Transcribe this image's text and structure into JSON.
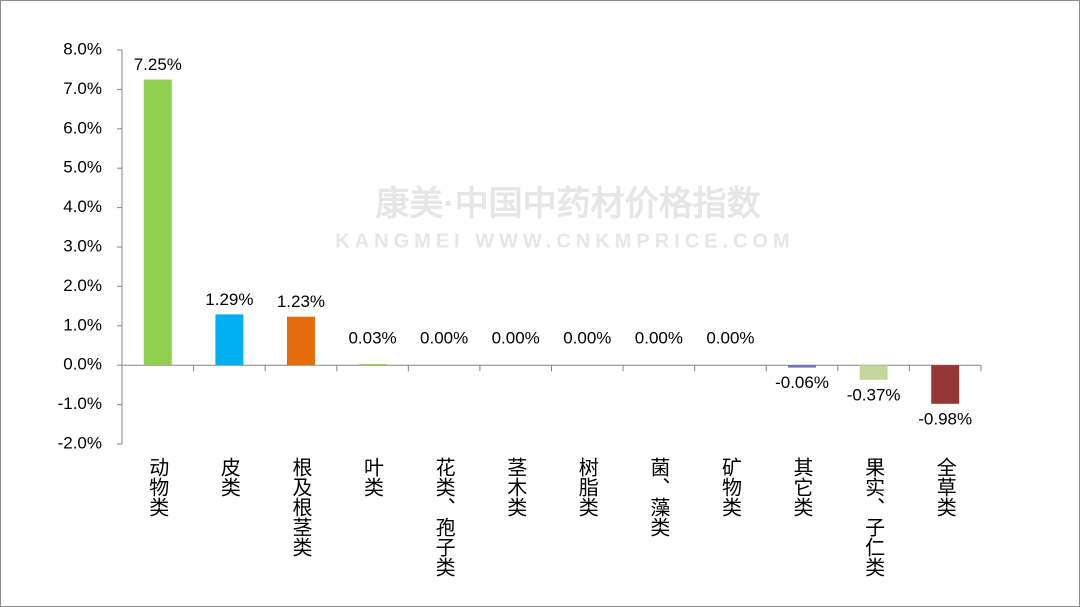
{
  "chart_data": {
    "type": "bar",
    "watermark": "康美·中国中药材价格指数",
    "watermark_subtitle": "KANGMEI WWW.CNKMPRICE.COM",
    "categories": [
      "动物类",
      "皮类",
      "根及根茎类",
      "叶类",
      "花类、孢子类",
      "茎木类",
      "树脂类",
      "菌、藻类",
      "矿物类",
      "其它类",
      "果实、子仁类",
      "全草类"
    ],
    "values": [
      7.25,
      1.29,
      1.23,
      0.03,
      0.0,
      0.0,
      0.0,
      0.0,
      0.0,
      -0.06,
      -0.37,
      -0.98
    ],
    "value_labels": [
      "7.25%",
      "1.29%",
      "1.23%",
      "0.03%",
      "0.00%",
      "0.00%",
      "0.00%",
      "0.00%",
      "0.00%",
      "-0.06%",
      "-0.37%",
      "-0.98%"
    ],
    "colors": [
      "#92d050",
      "#00b0f0",
      "#e46c0a",
      "#92d050",
      "#92d050",
      "#92d050",
      "#92d050",
      "#92d050",
      "#92d050",
      "#7070c0",
      "#c3d69b",
      "#953735"
    ],
    "ylim": [
      -2,
      8
    ],
    "yticks": [
      {
        "value": -2,
        "label": "-2.0%"
      },
      {
        "value": -1,
        "label": "-1.0%"
      },
      {
        "value": 0,
        "label": "0.0%"
      },
      {
        "value": 1,
        "label": "1.0%"
      },
      {
        "value": 2,
        "label": "2.0%"
      },
      {
        "value": 3,
        "label": "3.0%"
      },
      {
        "value": 4,
        "label": "4.0%"
      },
      {
        "value": 5,
        "label": "5.0%"
      },
      {
        "value": 6,
        "label": "6.0%"
      },
      {
        "value": 7,
        "label": "7.0%"
      },
      {
        "value": 8,
        "label": "8.0%"
      }
    ],
    "grid": false
  }
}
